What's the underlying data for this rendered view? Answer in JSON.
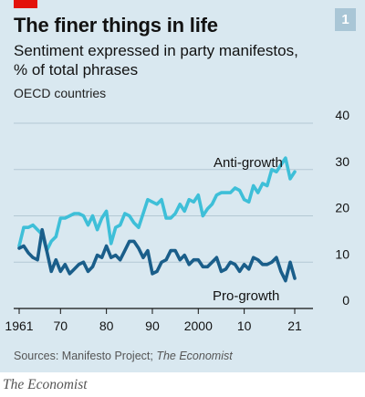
{
  "header": {
    "title": "The finer things in life",
    "subtitle": "Sentiment expressed in party manifestos, % of total phrases",
    "note": "OECD countries",
    "badge": "1"
  },
  "source": {
    "prefix": "Sources: Manifesto Project; ",
    "italic": "The Economist"
  },
  "brand": "The Economist",
  "colors": {
    "anti_growth": "#3ebfd8",
    "pro_growth": "#1a5e8a",
    "grid": "#b4c8d4",
    "axis": "#121212",
    "red_tag": "#e3120b"
  },
  "chart_data": {
    "type": "line",
    "ylim": [
      0,
      40
    ],
    "xlim": [
      1961,
      2021
    ],
    "yticks": [
      0,
      10,
      20,
      30,
      40
    ],
    "xtick_labels": [
      {
        "year": 1961,
        "label": "1961"
      },
      {
        "year": 1970,
        "label": "70"
      },
      {
        "year": 1980,
        "label": "80"
      },
      {
        "year": 1990,
        "label": "90"
      },
      {
        "year": 2000,
        "label": "2000"
      },
      {
        "year": 2010,
        "label": "10"
      },
      {
        "year": 2021,
        "label": "21"
      }
    ],
    "grid": true,
    "series": [
      {
        "name": "Anti-growth",
        "x": [
          1961,
          1962,
          1963,
          1964,
          1965,
          1966,
          1967,
          1968,
          1969,
          1970,
          1971,
          1972,
          1973,
          1974,
          1975,
          1976,
          1977,
          1978,
          1979,
          1980,
          1981,
          1982,
          1983,
          1984,
          1985,
          1986,
          1987,
          1988,
          1989,
          1990,
          1991,
          1992,
          1993,
          1994,
          1995,
          1996,
          1997,
          1998,
          1999,
          2000,
          2001,
          2002,
          2003,
          2004,
          2005,
          2006,
          2007,
          2008,
          2009,
          2010,
          2011,
          2012,
          2013,
          2014,
          2015,
          2016,
          2017,
          2018,
          2019,
          2020,
          2021
        ],
        "y": [
          13.5,
          17.5,
          17.5,
          18,
          17,
          16,
          12.5,
          14.5,
          15.5,
          19.5,
          19.5,
          20,
          20.5,
          20.5,
          20,
          18,
          20,
          17,
          19.5,
          21,
          14,
          17.5,
          18,
          20.5,
          20,
          18.5,
          17.5,
          20.5,
          23.5,
          23,
          22.5,
          23.5,
          19.5,
          19.5,
          20.5,
          22.5,
          21,
          23.5,
          23,
          24.5,
          20,
          21.5,
          22.5,
          24.5,
          25,
          25,
          25,
          26,
          25.5,
          23.5,
          23,
          26.5,
          25,
          27,
          26.5,
          30,
          29.5,
          31,
          32.5,
          28,
          29.5
        ]
      },
      {
        "name": "Pro-growth",
        "x": [
          1961,
          1962,
          1963,
          1964,
          1965,
          1966,
          1967,
          1968,
          1969,
          1970,
          1971,
          1972,
          1973,
          1974,
          1975,
          1976,
          1977,
          1978,
          1979,
          1980,
          1981,
          1982,
          1983,
          1984,
          1985,
          1986,
          1987,
          1988,
          1989,
          1990,
          1991,
          1992,
          1993,
          1994,
          1995,
          1996,
          1997,
          1998,
          1999,
          2000,
          2001,
          2002,
          2003,
          2004,
          2005,
          2006,
          2007,
          2008,
          2009,
          2010,
          2011,
          2012,
          2013,
          2014,
          2015,
          2016,
          2017,
          2018,
          2019,
          2020,
          2021
        ],
        "y": [
          13,
          13.5,
          12,
          11,
          10.5,
          17,
          12.5,
          8,
          10.5,
          8,
          9.5,
          7.5,
          8.5,
          9.5,
          10,
          8,
          9,
          11.5,
          11,
          13.5,
          11,
          11.5,
          10.5,
          12.5,
          14.5,
          14.5,
          13,
          11,
          12.5,
          7.5,
          8,
          10,
          10.5,
          12.5,
          12.5,
          10.5,
          11.5,
          9.5,
          10.5,
          10.5,
          9,
          9,
          10,
          11,
          8,
          8.5,
          10,
          9.5,
          8,
          9.5,
          8.5,
          11,
          10.5,
          9.5,
          9.5,
          10,
          11,
          8,
          6,
          10,
          6.5
        ]
      }
    ],
    "annotations": [
      {
        "text": "Anti-growth",
        "series": "Anti-growth"
      },
      {
        "text": "Pro-growth",
        "series": "Pro-growth"
      }
    ]
  }
}
